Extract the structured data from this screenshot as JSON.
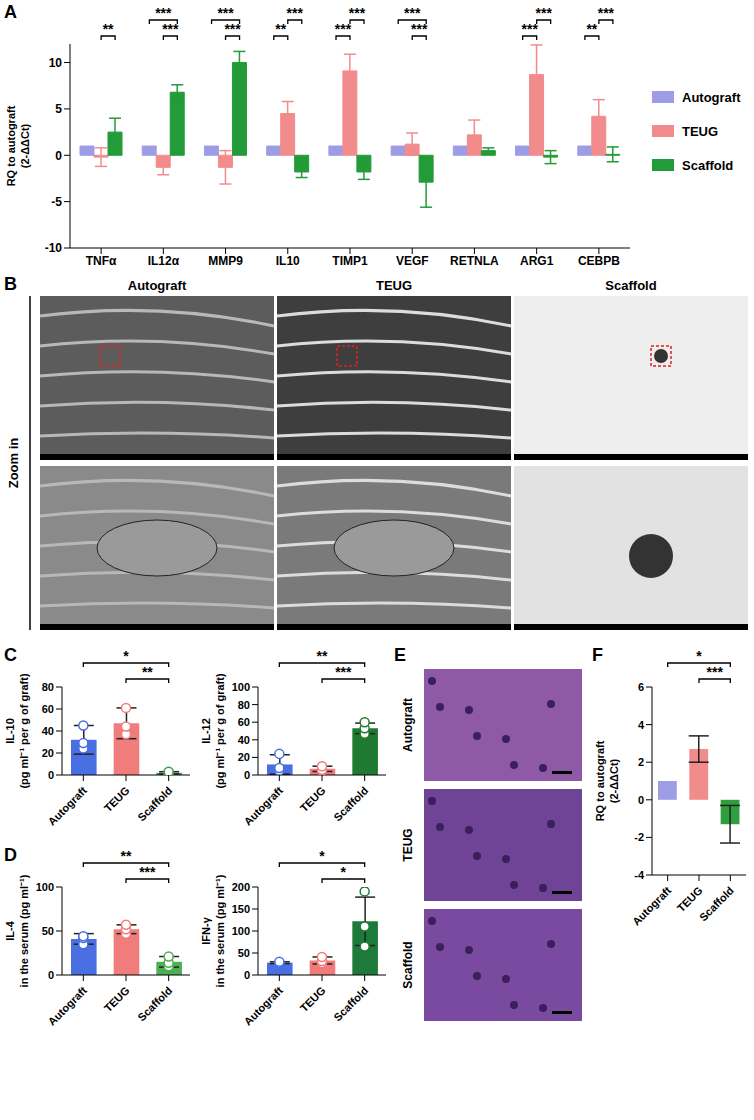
{
  "chart_data": [
    {
      "panel": "A",
      "type": "bar",
      "categories": [
        "TNFα",
        "IL12α",
        "MMP9",
        "IL10",
        "TIMP1",
        "VEGF",
        "RETNLA",
        "ARG1",
        "CEBPB"
      ],
      "y_label": [
        "RQ to autograft",
        "(2-ΔΔCt)"
      ],
      "ylim": [
        -10,
        12
      ],
      "yticks": [
        -10,
        -5,
        0,
        5,
        10
      ],
      "legend": "right",
      "series": [
        {
          "name": "Autograft",
          "color": "#9d9de6",
          "values": [
            1,
            1,
            1,
            1,
            1,
            1,
            1,
            1,
            1
          ]
        },
        {
          "name": "TEUG",
          "color": "#f28c8c",
          "values": [
            -0.2,
            -1.3,
            -1.3,
            4.5,
            9.1,
            1.2,
            2.2,
            8.7,
            4.2
          ],
          "errors": [
            1.0,
            0.8,
            1.8,
            1.3,
            1.8,
            1.2,
            1.6,
            3.2,
            1.8
          ]
        },
        {
          "name": "Scaffold",
          "color": "#239b38",
          "values": [
            2.5,
            6.8,
            10,
            -1.8,
            -1.8,
            -2.9,
            0.5,
            -0.2,
            0.1
          ],
          "errors": [
            1.5,
            0.8,
            1.2,
            0.6,
            0.8,
            2.7,
            0.3,
            0.7,
            0.8
          ]
        }
      ],
      "significance": [
        {
          "category": "TNFα",
          "from": "TEUG",
          "to": "Scaffold",
          "label": "**"
        },
        {
          "category": "IL12α",
          "from": "TEUG",
          "to": "Scaffold",
          "label": "***"
        },
        {
          "category": "IL12α",
          "from": "Autograft",
          "to": "Scaffold",
          "label": "***"
        },
        {
          "category": "MMP9",
          "from": "TEUG",
          "to": "Scaffold",
          "label": "***"
        },
        {
          "category": "MMP9",
          "from": "Autograft",
          "to": "Scaffold",
          "label": "***"
        },
        {
          "category": "IL10",
          "from": "Autograft",
          "to": "TEUG",
          "label": "**"
        },
        {
          "category": "IL10",
          "from": "TEUG",
          "to": "Scaffold",
          "label": "***"
        },
        {
          "category": "TIMP1",
          "from": "Autograft",
          "to": "TEUG",
          "label": "***"
        },
        {
          "category": "TIMP1",
          "from": "TEUG",
          "to": "Scaffold",
          "label": "***"
        },
        {
          "category": "VEGF",
          "from": "TEUG",
          "to": "Scaffold",
          "label": "***"
        },
        {
          "category": "VEGF",
          "from": "Autograft",
          "to": "Scaffold",
          "label": "***"
        },
        {
          "category": "ARG1",
          "from": "Autograft",
          "to": "TEUG",
          "label": "***"
        },
        {
          "category": "ARG1",
          "from": "TEUG",
          "to": "Scaffold",
          "label": "***"
        },
        {
          "category": "CEBPB",
          "from": "Autograft",
          "to": "TEUG",
          "label": "**"
        },
        {
          "category": "CEBPB",
          "from": "TEUG",
          "to": "Scaffold",
          "label": "***"
        }
      ]
    },
    {
      "panel": "C",
      "type": "bar",
      "categories": [
        "Autograft",
        "TEUG",
        "Scaffold"
      ],
      "colors": [
        "#4a6fe3",
        "#f07c7c",
        "#3a9b49"
      ],
      "y_label": [
        "IL-10",
        "(pg ml⁻¹ per g of graft)"
      ],
      "ylim": [
        0,
        80
      ],
      "yticks": [
        0,
        20,
        40,
        60,
        80
      ],
      "values": [
        32,
        47,
        2
      ],
      "errors": [
        13,
        14,
        1
      ],
      "points": [
        [
          24,
          29,
          45
        ],
        [
          37,
          44,
          61
        ],
        [
          1,
          2,
          3
        ]
      ],
      "significance": [
        {
          "from": "TEUG",
          "to": "Scaffold",
          "label": "**"
        },
        {
          "from": "Autograft",
          "to": "Scaffold",
          "label": "*"
        }
      ]
    },
    {
      "type": "bar",
      "categories": [
        "Autograft",
        "TEUG",
        "Scaffold"
      ],
      "colors": [
        "#4a6fe3",
        "#f07c7c",
        "#1f7a30"
      ],
      "y_label": [
        "IL-12",
        "(pg ml⁻¹ per g of graft)"
      ],
      "ylim": [
        0,
        100
      ],
      "yticks": [
        0,
        20,
        40,
        60,
        80,
        100
      ],
      "values": [
        12,
        7,
        53
      ],
      "errors": [
        11,
        3,
        6
      ],
      "points": [
        [
          5,
          8,
          24
        ],
        [
          5,
          6,
          10
        ],
        [
          47,
          53,
          60
        ]
      ],
      "significance": [
        {
          "from": "TEUG",
          "to": "Scaffold",
          "label": "***"
        },
        {
          "from": "Autograft",
          "to": "Scaffold",
          "label": "**"
        }
      ]
    },
    {
      "panel": "D",
      "type": "bar",
      "categories": [
        "Autograft",
        "TEUG",
        "Scaffold"
      ],
      "colors": [
        "#4a6fe3",
        "#f07c7c",
        "#4caf50"
      ],
      "y_label": [
        "IL-4",
        "in the serum (pg ml⁻¹)"
      ],
      "ylim": [
        0,
        100
      ],
      "yticks": [
        0,
        50,
        100
      ],
      "values": [
        41,
        52,
        15
      ],
      "errors": [
        6,
        5,
        6
      ],
      "points": [
        [
          35,
          42,
          44
        ],
        [
          47,
          52,
          57
        ],
        [
          10,
          14,
          21
        ]
      ],
      "significance": [
        {
          "from": "TEUG",
          "to": "Scaffold",
          "label": "***"
        },
        {
          "from": "Autograft",
          "to": "Scaffold",
          "label": "**"
        }
      ]
    },
    {
      "type": "bar",
      "categories": [
        "Autograft",
        "TEUG",
        "Scaffold"
      ],
      "colors": [
        "#4a6fe3",
        "#f07c7c",
        "#1e7a3a"
      ],
      "y_label": [
        "IFN-γ",
        "in the serum (pg ml⁻¹)"
      ],
      "ylim": [
        0,
        200
      ],
      "yticks": [
        0,
        50,
        100,
        150,
        200
      ],
      "values": [
        28,
        33,
        122
      ],
      "errors": [
        2,
        8,
        55
      ],
      "points": [
        [
          26,
          28,
          30
        ],
        [
          27,
          32,
          41
        ],
        [
          65,
          110,
          190
        ]
      ],
      "significance": [
        {
          "from": "TEUG",
          "to": "Scaffold",
          "label": "*"
        },
        {
          "from": "Autograft",
          "to": "Scaffold",
          "label": "*"
        }
      ]
    },
    {
      "panel": "F",
      "type": "bar",
      "categories": [
        "Autograft",
        "TEUG",
        "Scaffold"
      ],
      "colors": [
        "#9d9de6",
        "#f28c8c",
        "#2e9e3e"
      ],
      "y_label": [
        "RQ to autograft",
        "(2-ΔΔCt)"
      ],
      "ylim": [
        -4,
        6
      ],
      "yticks": [
        -4,
        -2,
        0,
        2,
        4,
        6
      ],
      "values": [
        1,
        2.7,
        -1.3
      ],
      "errors": [
        null,
        0.7,
        1.0
      ],
      "significance": [
        {
          "from": "TEUG",
          "to": "Scaffold",
          "label": "***"
        },
        {
          "from": "Autograft",
          "to": "Scaffold",
          "label": "*"
        }
      ]
    }
  ],
  "images": [
    {
      "panel": "B",
      "columns": [
        "Autograft",
        "TEUG",
        "Scaffold"
      ],
      "row_label": "Zoom in"
    },
    {
      "panel": "E",
      "rows": [
        "Autograft",
        "TEUG",
        "Scaffold"
      ]
    }
  ]
}
